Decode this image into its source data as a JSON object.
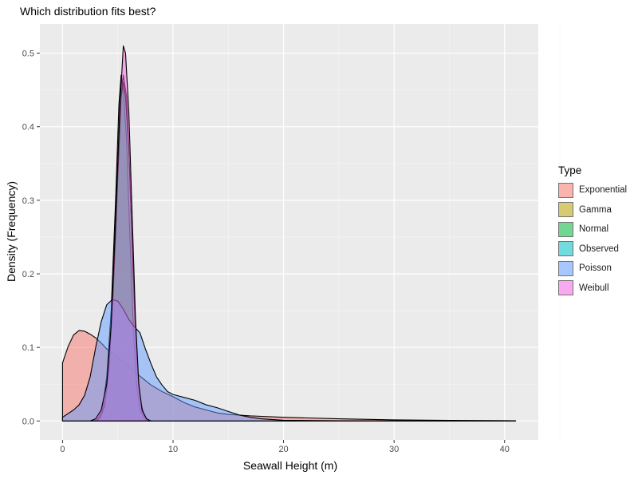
{
  "chart_data": {
    "type": "area",
    "title": "Which distribution fits best?",
    "xlabel": "Seawall Height (m)",
    "ylabel": "Density (Frequency)",
    "xlim": [
      -2.05,
      43.05
    ],
    "ylim": [
      -0.0257,
      0.5397
    ],
    "x_ticks": [
      0,
      10,
      20,
      30,
      40
    ],
    "y_ticks": [
      0.0,
      0.1,
      0.2,
      0.3,
      0.4,
      0.5
    ],
    "x_tick_labels": [
      "0",
      "10",
      "20",
      "30",
      "40"
    ],
    "y_tick_labels": [
      "0.0",
      "0.1",
      "0.2",
      "0.3",
      "0.4",
      "0.5"
    ],
    "grid": true,
    "legend_position": "right",
    "legend_title": "Type",
    "series": [
      {
        "name": "Exponential",
        "color": "#F8766D",
        "points": [
          [
            0,
            0.079
          ],
          [
            0.5,
            0.101
          ],
          [
            1,
            0.117
          ],
          [
            1.5,
            0.123
          ],
          [
            2,
            0.122
          ],
          [
            2.5,
            0.118
          ],
          [
            3,
            0.113
          ],
          [
            3.5,
            0.106
          ],
          [
            4,
            0.098
          ],
          [
            5,
            0.086
          ],
          [
            6,
            0.074
          ],
          [
            7,
            0.061
          ],
          [
            8,
            0.049
          ],
          [
            9,
            0.04
          ],
          [
            10,
            0.033
          ],
          [
            11,
            0.025
          ],
          [
            12,
            0.019
          ],
          [
            13,
            0.015
          ],
          [
            14,
            0.011
          ],
          [
            15,
            0.009
          ],
          [
            17,
            0.007
          ],
          [
            20,
            0.005
          ],
          [
            25,
            0.003
          ],
          [
            30,
            0.0015
          ],
          [
            35,
            0.0008
          ],
          [
            41,
            0.0003
          ]
        ]
      },
      {
        "name": "Gamma",
        "color": "#B79F00",
        "points": [
          [
            2.8,
            0.0
          ],
          [
            3.2,
            0.002
          ],
          [
            3.6,
            0.01
          ],
          [
            4.0,
            0.04
          ],
          [
            4.4,
            0.12
          ],
          [
            4.8,
            0.27
          ],
          [
            5.2,
            0.43
          ],
          [
            5.5,
            0.47
          ],
          [
            5.8,
            0.44
          ],
          [
            6.1,
            0.33
          ],
          [
            6.4,
            0.2
          ],
          [
            6.7,
            0.09
          ],
          [
            7.0,
            0.03
          ],
          [
            7.4,
            0.006
          ],
          [
            7.8,
            0.0
          ]
        ]
      },
      {
        "name": "Normal",
        "color": "#00BA38",
        "points": [
          [
            2.8,
            0.0
          ],
          [
            3.2,
            0.003
          ],
          [
            3.6,
            0.015
          ],
          [
            4.0,
            0.06
          ],
          [
            4.4,
            0.15
          ],
          [
            4.8,
            0.3
          ],
          [
            5.1,
            0.43
          ],
          [
            5.3,
            0.47
          ],
          [
            5.5,
            0.45
          ],
          [
            5.8,
            0.38
          ],
          [
            6.1,
            0.25
          ],
          [
            6.4,
            0.13
          ],
          [
            6.7,
            0.05
          ],
          [
            7.0,
            0.015
          ],
          [
            7.4,
            0.003
          ],
          [
            7.8,
            0.0
          ]
        ]
      },
      {
        "name": "Observed",
        "color": "#00BFC4",
        "points": [
          [
            3.0,
            0.0
          ],
          [
            3.4,
            0.004
          ],
          [
            3.8,
            0.02
          ],
          [
            4.2,
            0.07
          ],
          [
            4.6,
            0.18
          ],
          [
            5.0,
            0.33
          ],
          [
            5.3,
            0.44
          ],
          [
            5.5,
            0.46
          ],
          [
            5.7,
            0.44
          ],
          [
            6.0,
            0.37
          ],
          [
            6.3,
            0.24
          ],
          [
            6.6,
            0.12
          ],
          [
            6.9,
            0.045
          ],
          [
            7.2,
            0.012
          ],
          [
            7.6,
            0.002
          ],
          [
            8.0,
            0.0
          ]
        ]
      },
      {
        "name": "Poisson",
        "color": "#619CFF",
        "points": [
          [
            0,
            0.005
          ],
          [
            0.5,
            0.01
          ],
          [
            1,
            0.015
          ],
          [
            1.5,
            0.022
          ],
          [
            2,
            0.035
          ],
          [
            2.5,
            0.06
          ],
          [
            3,
            0.1
          ],
          [
            3.5,
            0.135
          ],
          [
            4,
            0.158
          ],
          [
            4.5,
            0.165
          ],
          [
            5,
            0.163
          ],
          [
            5.5,
            0.152
          ],
          [
            6,
            0.138
          ],
          [
            6.5,
            0.128
          ],
          [
            7,
            0.12
          ],
          [
            7.5,
            0.098
          ],
          [
            8,
            0.078
          ],
          [
            8.5,
            0.06
          ],
          [
            9,
            0.049
          ],
          [
            9.5,
            0.04
          ],
          [
            10,
            0.036
          ],
          [
            11,
            0.032
          ],
          [
            12,
            0.028
          ],
          [
            13,
            0.022
          ],
          [
            14,
            0.018
          ],
          [
            15,
            0.013
          ],
          [
            16,
            0.008
          ],
          [
            17,
            0.005
          ],
          [
            18,
            0.003
          ],
          [
            20,
            0.001
          ],
          [
            25,
            0.0003
          ],
          [
            30,
            0.0002
          ],
          [
            35,
            0.0001
          ],
          [
            41,
            0.0
          ]
        ]
      },
      {
        "name": "Weibull",
        "color": "#F564E3",
        "points": [
          [
            2.5,
            0.0
          ],
          [
            3.0,
            0.003
          ],
          [
            3.5,
            0.015
          ],
          [
            4.0,
            0.05
          ],
          [
            4.4,
            0.13
          ],
          [
            4.8,
            0.27
          ],
          [
            5.2,
            0.43
          ],
          [
            5.5,
            0.51
          ],
          [
            5.7,
            0.5
          ],
          [
            6.0,
            0.42
          ],
          [
            6.3,
            0.28
          ],
          [
            6.6,
            0.14
          ],
          [
            6.9,
            0.05
          ],
          [
            7.2,
            0.015
          ],
          [
            7.6,
            0.003
          ],
          [
            8.0,
            0.0
          ]
        ]
      }
    ]
  }
}
